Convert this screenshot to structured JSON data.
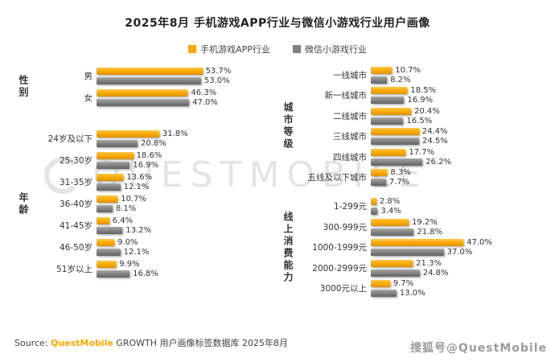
{
  "title": "2025年8月 手机游戏APP行业与微信小游戏行业用户画像",
  "legend": [
    {
      "label": "手机游戏APP行业",
      "color": "#F7A800"
    },
    {
      "label": "微信小游戏行业",
      "color": "#7F7F7F"
    }
  ],
  "watermark": "QUESTMOBILE",
  "source": {
    "prefix": "Source: ",
    "brand": "QuestMobile",
    "rest": " GROWTH 用户画像标签数据库 2025年8月"
  },
  "footer_badge": "搜狐号@QuestMobile",
  "chart_data": {
    "type": "bar",
    "orientation": "horizontal",
    "unit": "%",
    "series_names": [
      "手机游戏APP行业",
      "微信小游戏行业"
    ],
    "series_colors": [
      "#F7A800",
      "#7F7F7F"
    ],
    "panels": [
      {
        "groups": [
          {
            "name": "性别",
            "rows": [
              {
                "label": "男",
                "values": [
                  53.7,
                  53.0
                ]
              },
              {
                "label": "女",
                "values": [
                  46.3,
                  47.0
                ]
              }
            ]
          },
          {
            "name": "年龄",
            "rows": [
              {
                "label": "24岁及以下",
                "values": [
                  31.8,
                  20.8
                ]
              },
              {
                "label": "25-30岁",
                "values": [
                  18.6,
                  16.9
                ]
              },
              {
                "label": "31-35岁",
                "values": [
                  13.6,
                  12.1
                ]
              },
              {
                "label": "36-40岁",
                "values": [
                  10.7,
                  8.1
                ]
              },
              {
                "label": "41-45岁",
                "values": [
                  6.4,
                  13.2
                ]
              },
              {
                "label": "46-50岁",
                "values": [
                  9.0,
                  12.1
                ]
              },
              {
                "label": "51岁以上",
                "values": [
                  9.9,
                  16.8
                ]
              }
            ]
          }
        ]
      },
      {
        "groups": [
          {
            "name": "城市等级",
            "rows": [
              {
                "label": "一线城市",
                "values": [
                  10.7,
                  8.2
                ]
              },
              {
                "label": "新一线城市",
                "values": [
                  18.5,
                  16.9
                ]
              },
              {
                "label": "二线城市",
                "values": [
                  20.4,
                  16.5
                ]
              },
              {
                "label": "三线城市",
                "values": [
                  24.4,
                  24.5
                ]
              },
              {
                "label": "四线城市",
                "values": [
                  17.7,
                  26.2
                ]
              },
              {
                "label": "五线及以下城市",
                "values": [
                  8.3,
                  7.7
                ]
              }
            ]
          },
          {
            "name": "线上消费能力",
            "rows": [
              {
                "label": "1-299元",
                "values": [
                  2.8,
                  3.4
                ]
              },
              {
                "label": "300-999元",
                "values": [
                  19.2,
                  21.8
                ]
              },
              {
                "label": "1000-1999元",
                "values": [
                  47.0,
                  37.0
                ]
              },
              {
                "label": "2000-2999元",
                "values": [
                  21.3,
                  24.8
                ]
              },
              {
                "label": "3000元以上",
                "values": [
                  9.7,
                  13.0
                ]
              }
            ]
          }
        ]
      }
    ]
  }
}
